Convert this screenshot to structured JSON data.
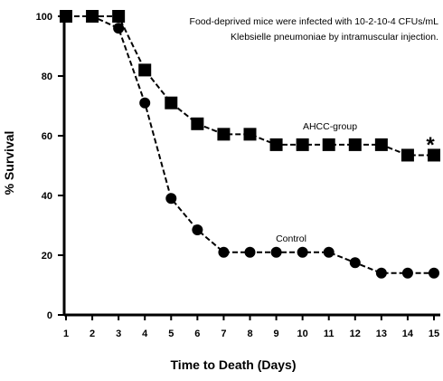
{
  "chart_data": {
    "type": "line",
    "title": "",
    "xlabel": "Time to Death (Days)",
    "ylabel": "% Survival",
    "xlim": [
      1,
      15
    ],
    "ylim": [
      0,
      100
    ],
    "x_ticks": [
      1,
      2,
      3,
      4,
      5,
      6,
      7,
      8,
      9,
      10,
      11,
      12,
      13,
      14,
      15
    ],
    "y_ticks": [
      0,
      20,
      40,
      60,
      80,
      100
    ],
    "grid": false,
    "annotation": {
      "lines": [
        "Food-deprived mice were infected with 10-2-10-4 CFUs/mL",
        "Klebsielle pneumoniae by intramuscular injection."
      ]
    },
    "significance_marker": "*",
    "series": [
      {
        "name": "AHCC-group",
        "marker": "square",
        "x": [
          1,
          2,
          3,
          4,
          5,
          6,
          7,
          8,
          9,
          10,
          11,
          12,
          13,
          14,
          15
        ],
        "y": [
          100,
          100,
          100,
          82,
          71,
          64,
          60.5,
          60.5,
          57,
          57,
          57,
          57,
          57,
          53.5,
          53.5
        ]
      },
      {
        "name": "Control",
        "marker": "circle",
        "x": [
          1,
          2,
          3,
          4,
          5,
          6,
          7,
          8,
          9,
          10,
          11,
          12,
          13,
          14,
          15
        ],
        "y": [
          100,
          100,
          96,
          71,
          39,
          28.5,
          21,
          21,
          21,
          21,
          21,
          17.5,
          14,
          14,
          14
        ]
      }
    ]
  }
}
